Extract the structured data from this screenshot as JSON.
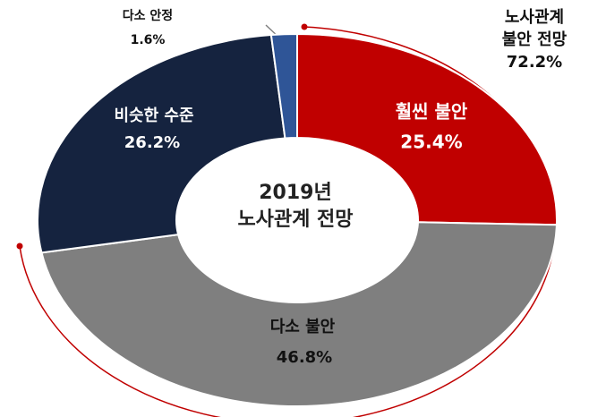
{
  "chart_data": {
    "type": "pie",
    "categories": [
      "훨씬 불안",
      "다소 불안",
      "비슷한 수준",
      "다소 안정"
    ],
    "values": [
      25.4,
      46.8,
      26.2,
      1.6
    ],
    "value_labels": [
      "25.4%",
      "46.8%",
      "26.2%",
      "1.6%"
    ],
    "colors": [
      "#c00000",
      "#7f7f7f",
      "#15233f",
      "#2f5597"
    ],
    "center_label": [
      "2019년",
      "노사관계 전망"
    ],
    "annotation": [
      "노사관계",
      "불안 전망",
      "72.2%"
    ]
  }
}
